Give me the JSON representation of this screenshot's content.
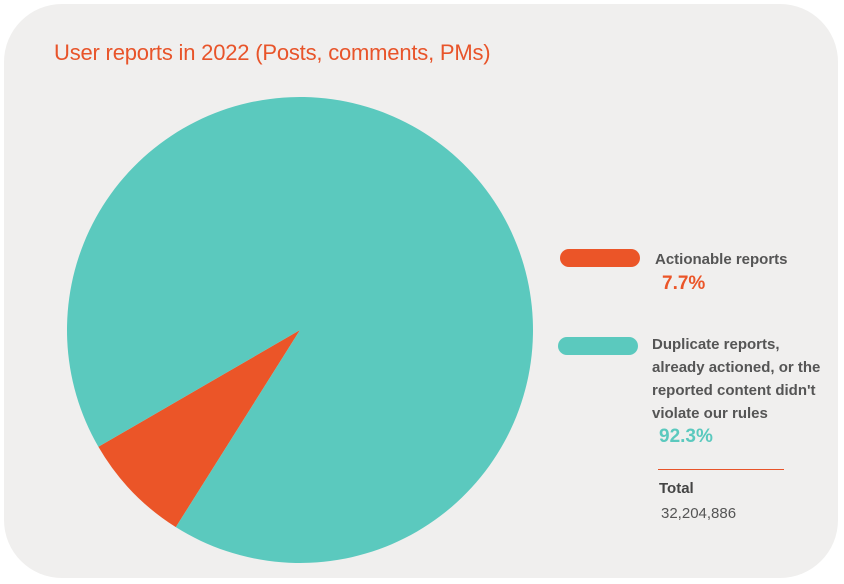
{
  "chart_data": {
    "type": "pie",
    "title": "User reports in 2022 (Posts, comments, PMs)",
    "slices": [
      {
        "label": "Actionable reports",
        "value": 7.7,
        "display": "7.7%",
        "color": "#eb5528"
      },
      {
        "label": "Duplicate reports, already actioned, or the reported content didn't violate our rules",
        "value": 92.3,
        "display": "92.3%",
        "color": "#5bc9be"
      }
    ],
    "total_label": "Total",
    "total_value": "32,204,886"
  },
  "colors": {
    "background": "#f0efee",
    "title": "#e8542a",
    "divider": "#e8542a"
  }
}
